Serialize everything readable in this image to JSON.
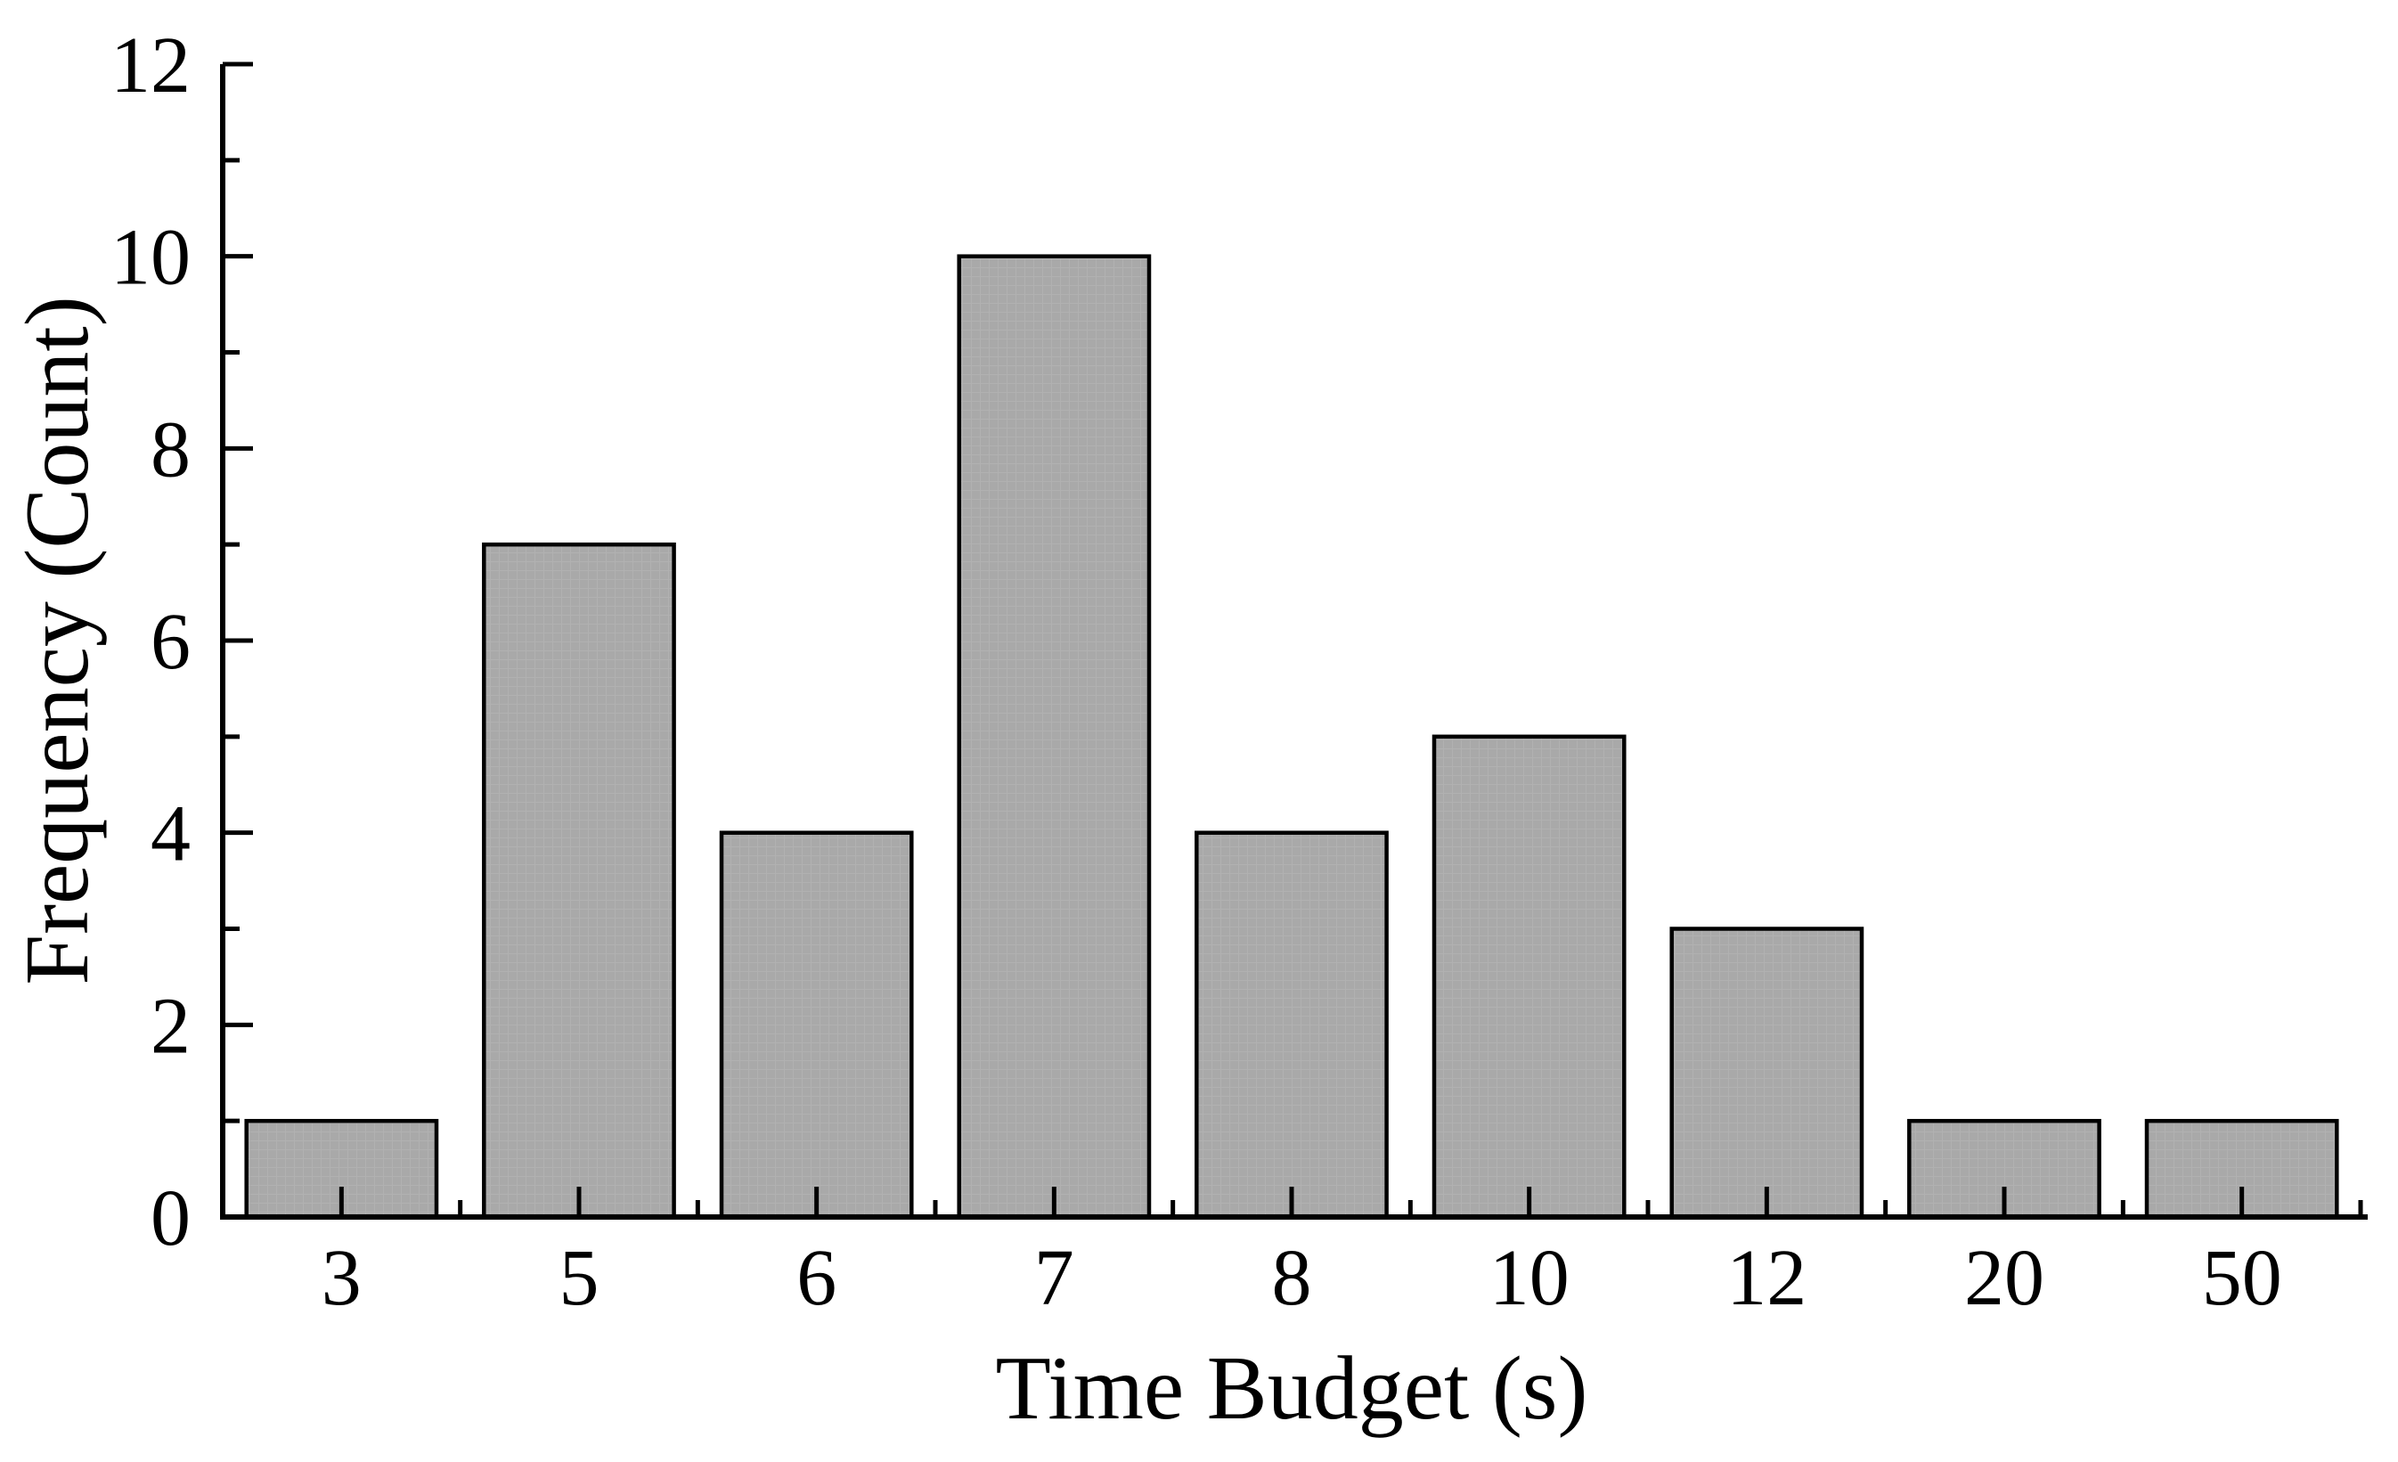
{
  "chart_data": {
    "type": "bar",
    "title": "",
    "categories": [
      "3",
      "5",
      "6",
      "7",
      "8",
      "10",
      "12",
      "20",
      "50"
    ],
    "values": [
      1,
      7,
      4,
      10,
      4,
      5,
      3,
      1,
      1
    ],
    "xlabel": "Time Budget (s)",
    "ylabel": "Frequency (Count)",
    "ylim": [
      0,
      12
    ],
    "ytick_major": [
      0,
      2,
      4,
      6,
      8,
      10,
      12
    ],
    "ytick_minor": [
      1,
      3,
      5,
      7,
      9,
      11
    ],
    "x_minor_ticks_at_slot_boundaries": true,
    "x_major_ticks_at_bar_centers": true,
    "ticks_direction": "in",
    "grid": false,
    "legend": null,
    "colors": {
      "bar_fill": "#a9a9a9",
      "bar_texture": "#b2b2b2",
      "bar_edge": "#000000",
      "axis": "#000000",
      "text": "#000000",
      "background": "#ffffff"
    }
  }
}
